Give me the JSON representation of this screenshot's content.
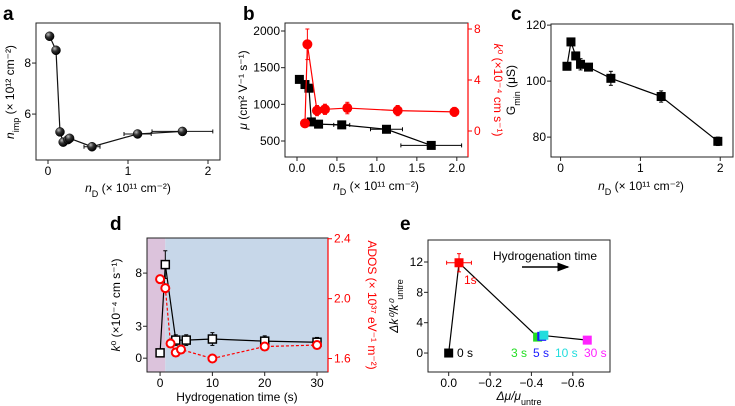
{
  "chart_data": [
    {
      "panel_label": "a",
      "type": "scatter",
      "xlabel": [
        {
          "t": "n",
          "s": "i"
        },
        {
          "t": "D",
          "s": "sub"
        },
        {
          "t": " (× 10¹¹ cm⁻²)"
        }
      ],
      "ylabel": [
        {
          "t": "n",
          "s": "i"
        },
        {
          "t": "imp",
          "s": "sub"
        },
        {
          "t": " (× 10¹² cm⁻²)"
        }
      ],
      "xlim": [
        -0.15,
        2.15
      ],
      "ylim": [
        4.2,
        9.57
      ],
      "xticks": [
        0,
        1,
        2
      ],
      "xtick_labels": [
        "0",
        "1",
        "2"
      ],
      "yticks": [
        6,
        8
      ],
      "ytick_labels": [
        "6",
        "8"
      ],
      "series": [
        {
          "name": "n_imp",
          "color": "#111111",
          "marker": "sphere",
          "axis": "left",
          "x": [
            0.02,
            0.1,
            0.15,
            0.19,
            0.25,
            0.27,
            0.55,
            1.12,
            1.68
          ],
          "y": [
            9.05,
            8.5,
            5.3,
            4.9,
            5.0,
            5.05,
            4.72,
            5.22,
            5.32
          ],
          "xerr": [
            0,
            0,
            0,
            0.04,
            0,
            0,
            0.1,
            0.17,
            0.38
          ],
          "yerr": [
            0,
            0,
            0,
            0,
            0,
            0,
            0,
            0,
            0
          ]
        }
      ]
    },
    {
      "panel_label": "b",
      "type": "scatter",
      "xlabel": [
        {
          "t": "n",
          "s": "i"
        },
        {
          "t": "D",
          "s": "sub"
        },
        {
          "t": " (× 10¹¹ cm⁻²)"
        }
      ],
      "ylabel": [
        {
          "t": "μ",
          "s": "i"
        },
        {
          "t": " (cm² V⁻¹ s⁻¹)"
        }
      ],
      "y2label": [
        {
          "t": "k",
          "s": "i"
        },
        {
          "t": "⁰ (×10⁻⁴ cm s⁻¹)"
        }
      ],
      "xlim": [
        -0.15,
        2.14
      ],
      "ylim": [
        282,
        2109
      ],
      "y2lim": [
        -2.04,
        8.47
      ],
      "xticks": [
        0,
        0.5,
        1,
        1.5,
        2
      ],
      "xtick_labels": [
        "0.0",
        "0.5",
        "1.0",
        "1.5",
        "2.0"
      ],
      "yticks": [
        500,
        1000,
        1500,
        2000
      ],
      "ytick_labels": [
        "500",
        "1000",
        "1500",
        "2000"
      ],
      "y2ticks": [
        0,
        4,
        8
      ],
      "y2tick_labels": [
        "0",
        "4",
        "8"
      ],
      "y2color": "#ff0000",
      "series": [
        {
          "name": "mobility",
          "color": "#000000",
          "marker": "square",
          "axis": "left",
          "x": [
            0.03,
            0.1,
            0.15,
            0.18,
            0.27,
            0.56,
            1.12,
            1.68
          ],
          "y": [
            1340,
            1270,
            1220,
            760,
            730,
            720,
            660,
            440
          ],
          "xerr": [
            0.03,
            0.03,
            0.03,
            0.03,
            0.03,
            0.1,
            0.2,
            0.38
          ],
          "yerr": [
            0,
            0,
            0,
            0,
            0,
            0,
            0,
            0
          ]
        },
        {
          "name": "k0",
          "color": "#ff0000",
          "marker": "circle",
          "axis": "right",
          "x": [
            0.1,
            0.13,
            0.25,
            0.35,
            0.63,
            1.26,
            1.97
          ],
          "y": [
            0.6,
            6.8,
            1.6,
            1.7,
            1.8,
            1.6,
            1.5
          ],
          "xerr": [
            0,
            0,
            0,
            0,
            0,
            0,
            0
          ],
          "yerr": [
            0,
            1.2,
            0.4,
            0.4,
            0.45,
            0.4,
            0.35
          ]
        }
      ]
    },
    {
      "panel_label": "c",
      "type": "scatter",
      "xlabel": [
        {
          "t": "n",
          "s": "i"
        },
        {
          "t": "D",
          "s": "sub"
        },
        {
          "t": " (× 10¹¹ cm⁻²)"
        }
      ],
      "ylabel": [
        {
          "t": "G"
        },
        {
          "t": "min",
          "s": "sub"
        },
        {
          "t": " (μS)"
        }
      ],
      "xlim": [
        -0.12,
        2.16
      ],
      "ylim": [
        72.9,
        120.4
      ],
      "xticks": [
        0,
        1,
        2
      ],
      "xtick_labels": [
        "0",
        "1",
        "2"
      ],
      "yticks": [
        80,
        100,
        120
      ],
      "ytick_labels": [
        "80",
        "100",
        "120"
      ],
      "series": [
        {
          "name": "G_min",
          "color": "#000000",
          "marker": "square",
          "axis": "left",
          "x": [
            0.08,
            0.13,
            0.19,
            0.25,
            0.35,
            0.63,
            1.26,
            1.97
          ],
          "y": [
            105.3,
            114,
            109,
            106,
            105,
            101,
            94.5,
            78.5
          ],
          "xerr": [
            0,
            0,
            0,
            0,
            0,
            0,
            0,
            0
          ],
          "yerr": [
            0,
            0,
            1,
            2,
            0,
            2.5,
            2,
            1.5
          ]
        }
      ]
    },
    {
      "panel_label": "d",
      "type": "scatter",
      "xlabel": [
        {
          "t": "Hydrogenation time (s)"
        }
      ],
      "ylabel": [
        {
          "t": "k",
          "s": "i"
        },
        {
          "t": "⁰ (×10⁻⁴ cm s⁻¹)"
        }
      ],
      "y2label": [
        {
          "t": "ADOS (× 10³⁷ eV⁻¹ m⁻²)"
        }
      ],
      "xlim": [
        -2.5,
        32.1
      ],
      "ylim": [
        -1.3,
        11.3
      ],
      "y2lim": [
        1.51,
        2.405
      ],
      "xticks": [
        0,
        10,
        20,
        30
      ],
      "xtick_labels": [
        "0",
        "10",
        "20",
        "30"
      ],
      "yticks": [
        0,
        3,
        8
      ],
      "ytick_labels": [
        "0",
        "3",
        "8"
      ],
      "y2ticks": [
        1.6,
        2.0,
        2.4
      ],
      "y2tick_labels": [
        "1.6",
        "2.0",
        "2.4"
      ],
      "y2color": "#ff0000",
      "regions": [
        {
          "from": -2.5,
          "to": 1,
          "color": "#dcc3dc"
        },
        {
          "from": 1,
          "to": 32.1,
          "color": "#c7d7e9"
        }
      ],
      "series": [
        {
          "name": "k0",
          "color": "#000000",
          "marker": "open-square",
          "axis": "left",
          "x": [
            0,
            1,
            3,
            5,
            10,
            20,
            30
          ],
          "y": [
            0.5,
            8.8,
            1.7,
            1.7,
            1.8,
            1.6,
            1.5
          ],
          "xerr": [
            0,
            0,
            0,
            0,
            0,
            0,
            0
          ],
          "yerr": [
            0,
            1.3,
            0.5,
            0.5,
            0.6,
            0.5,
            0.45
          ]
        },
        {
          "name": "ADOS",
          "color": "#ff0000",
          "marker": "open-circle",
          "axis": "right",
          "dashed": true,
          "x": [
            0,
            1,
            2,
            3,
            4,
            10,
            20,
            30
          ],
          "y": [
            2.13,
            2.07,
            1.7,
            1.64,
            1.66,
            1.6,
            1.68,
            1.69
          ],
          "xerr": [
            0,
            0,
            0,
            0,
            0,
            0,
            0,
            0
          ],
          "yerr": [
            0,
            0,
            0,
            0,
            0,
            0,
            0,
            0
          ]
        }
      ]
    },
    {
      "panel_label": "e",
      "type": "scatter",
      "xlabel": [
        {
          "t": "Δμ/μ",
          "s": "i"
        },
        {
          "t": "untre",
          "s": "sub"
        }
      ],
      "ylabel": [
        {
          "t": "Δk⁰/k⁰",
          "s": "i"
        },
        {
          "t": "untre",
          "s": "sub"
        }
      ],
      "xlim": [
        0.1,
        -0.78
      ],
      "ylim": [
        -2.5,
        14.9
      ],
      "xticks": [
        0,
        -0.2,
        -0.4,
        -0.6
      ],
      "xtick_labels": [
        "0.0",
        "−0.2",
        "−0.4",
        "−0.6"
      ],
      "yticks": [
        0,
        4,
        8,
        12
      ],
      "ytick_labels": [
        "0",
        "4",
        "8",
        "12"
      ],
      "annotation": "Hydrogenation time",
      "series": [
        {
          "name": "trajectory",
          "color": "#000000",
          "marker": "none",
          "axis": "left",
          "x": [
            0,
            -0.05,
            -0.43,
            -0.45,
            -0.46,
            -0.67
          ],
          "y": [
            0,
            11.9,
            2.1,
            2.2,
            2.3,
            1.7
          ],
          "xerr": [
            0,
            0,
            0,
            0,
            0,
            0
          ],
          "yerr": [
            0,
            0,
            0,
            0,
            0,
            0
          ]
        },
        {
          "name": "0 s",
          "color": "#000000",
          "marker": "square",
          "axis": "left",
          "label": "0 s",
          "x": [
            0
          ],
          "y": [
            0
          ],
          "xerr": [
            0
          ],
          "yerr": [
            0
          ]
        },
        {
          "name": "1s",
          "color": "#ff0000",
          "marker": "square",
          "axis": "left",
          "label": "1s",
          "x": [
            -0.05
          ],
          "y": [
            11.9
          ],
          "xerr": [
            0.06
          ],
          "yerr": [
            1.2
          ]
        },
        {
          "name": "3 s",
          "color": "#22dd22",
          "marker": "square",
          "axis": "left",
          "label": "3 s",
          "x": [
            -0.43
          ],
          "y": [
            2.1
          ],
          "xerr": [
            0
          ],
          "yerr": [
            0
          ]
        },
        {
          "name": "5 s",
          "color": "#1a1aff",
          "marker": "square",
          "axis": "left",
          "label": "5 s",
          "x": [
            -0.45
          ],
          "y": [
            2.2
          ],
          "xerr": [
            0
          ],
          "yerr": [
            0.4
          ]
        },
        {
          "name": "10 s",
          "color": "#22dddd",
          "marker": "square",
          "axis": "left",
          "label": "10 s",
          "x": [
            -0.46
          ],
          "y": [
            2.35
          ],
          "xerr": [
            0
          ],
          "yerr": [
            0
          ]
        },
        {
          "name": "30 s",
          "color": "#ff22ff",
          "marker": "square",
          "axis": "left",
          "label": "30 s",
          "x": [
            -0.67
          ],
          "y": [
            1.7
          ],
          "xerr": [
            0
          ],
          "yerr": [
            0
          ]
        }
      ]
    }
  ]
}
